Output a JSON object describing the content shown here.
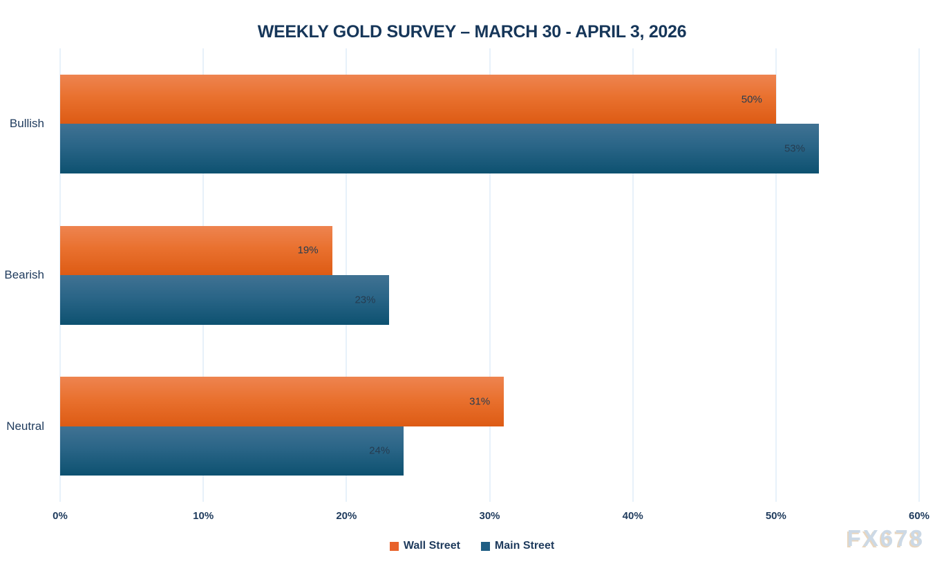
{
  "watermark": {
    "text": "FX678"
  },
  "chart_data": {
    "type": "bar",
    "orientation": "horizontal",
    "title": "WEEKLY GOLD SURVEY – MARCH 30 - APRIL 3, 2026",
    "categories": [
      "Bullish",
      "Bearish",
      "Neutral"
    ],
    "series": [
      {
        "name": "Wall Street",
        "values": [
          50,
          19,
          31
        ],
        "value_labels": [
          "50%",
          "19%",
          "31%"
        ],
        "swatch_color": "#E8622B",
        "bar_class": "bar-orange"
      },
      {
        "name": "Main Street",
        "values": [
          53,
          23,
          24
        ],
        "value_labels": [
          "53%",
          "23%",
          "24%"
        ],
        "swatch_color": "#1F5E84",
        "bar_class": "bar-blue"
      }
    ],
    "xlabel": "",
    "ylabel": "",
    "xlim": [
      0,
      60
    ],
    "xticks": [
      0,
      10,
      20,
      30,
      40,
      50,
      60
    ],
    "xtick_labels": [
      "0%",
      "10%",
      "20%",
      "30%",
      "40%",
      "50%",
      "60%"
    ],
    "unit": "%",
    "grid": "vertical-only",
    "gridline_color": "#CFE3F5",
    "legend_position": "bottom-center",
    "title_color": "#163659",
    "axis_text_color": "#1E3A5C"
  }
}
